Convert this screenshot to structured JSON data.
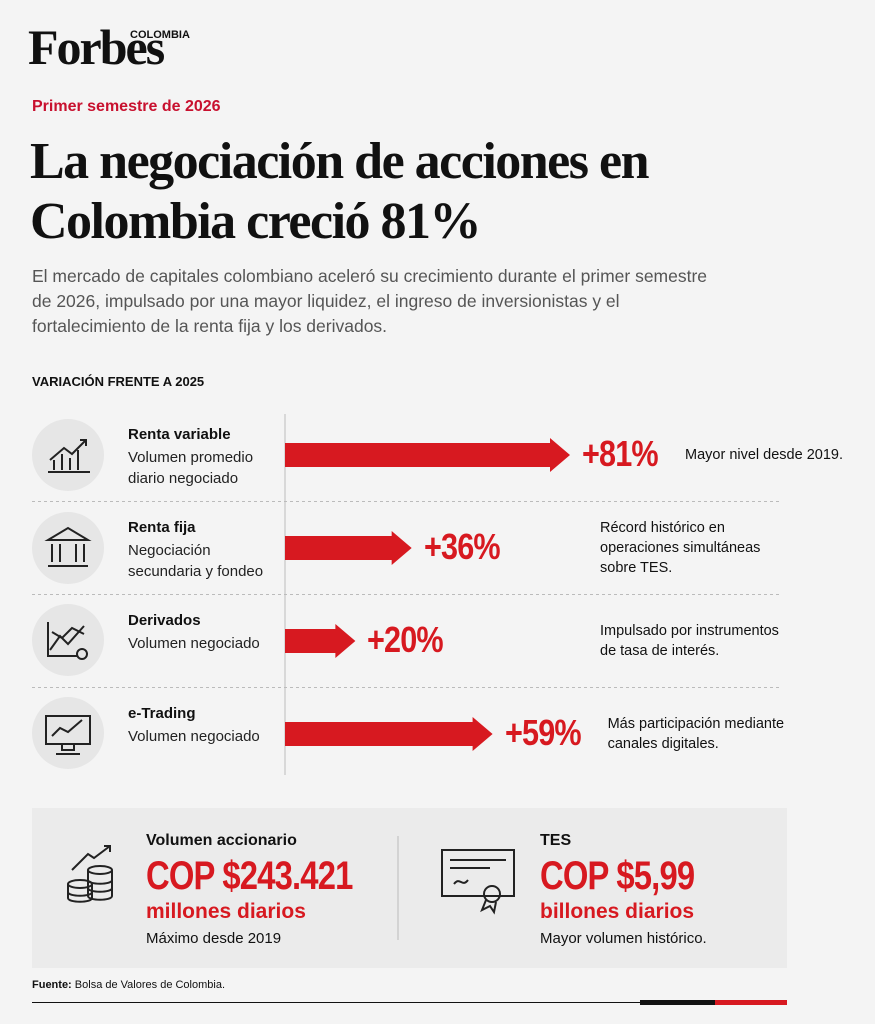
{
  "header": {
    "brand": "Forbes",
    "edition": "COLOMBIA",
    "kicker": "Primer semestre de 2026",
    "title": "La negociación de acciones en Colombia creció 81%",
    "subtitle": "El mercado de capitales colombiano aceleró su crecimiento durante el primer semestre de 2026, impulsado por una mayor liquidez, el ingreso de inversionistas y el fortalecimiento de la renta fija y los derivados."
  },
  "chart_data": {
    "type": "bar",
    "title": "VARIACIÓN FRENTE A 2025",
    "categories": [
      "Renta variable",
      "Renta fija",
      "Derivados",
      "e-Trading"
    ],
    "descriptions": [
      "Volumen promedio diario negociado",
      "Negociación secundaria y fondeo",
      "Volumen negociado",
      "Volumen negociado"
    ],
    "values": [
      81,
      36,
      20,
      59
    ],
    "value_labels": [
      "+81%",
      "+36%",
      "+20%",
      "+59%"
    ],
    "notes": [
      "Mayor nivel desde 2019.",
      "Récord histórico en operaciones simultáneas sobre TES.",
      "Impulsado por instrumentos de tasa de interés.",
      "Más participación mediante canales digitales."
    ],
    "color": "#d71920"
  },
  "stats": [
    {
      "title": "Volumen accionario",
      "value": "COP $243.421",
      "unit": "millones diarios",
      "note": "Máximo desde 2019"
    },
    {
      "title": "TES",
      "value": "COP $5,99",
      "unit": "billones diarios",
      "note": "Mayor volumen histórico."
    }
  ],
  "source": {
    "label": "Fuente:",
    "text": "Bolsa de Valores de Colombia."
  }
}
